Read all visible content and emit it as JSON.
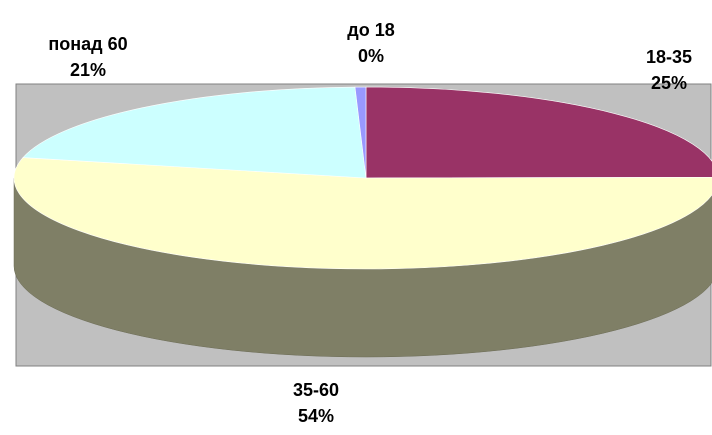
{
  "chart_data": {
    "type": "pie",
    "style": "3d",
    "categories": [
      "18-35",
      "35-60",
      "понад 60",
      "до 18"
    ],
    "values": [
      25,
      54,
      21,
      0.5
    ],
    "value_labels": [
      "25%",
      "54%",
      "21%",
      "0%"
    ],
    "colors": {
      "18-35": "#993366",
      "35-60": "#ffffcc",
      "понад 60": "#ccffff",
      "до 18": "#9999ff",
      "side": "#7f7f66",
      "plot_area": "#c0c0c0"
    },
    "title": "",
    "legend": "none"
  }
}
